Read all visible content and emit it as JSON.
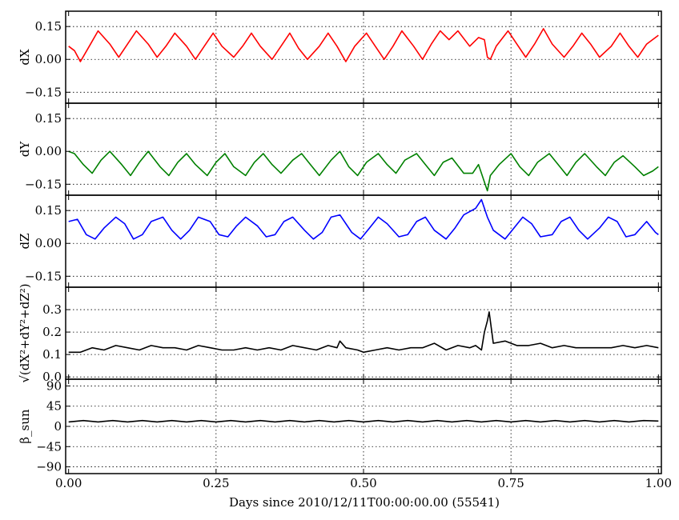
{
  "chart_data": {
    "type": "line",
    "xlabel": "Days since 2010/12/11T00:00:00.00 (55541)",
    "xlim": [
      -0.005,
      1.005
    ],
    "xticks": [
      0.0,
      0.25,
      0.5,
      0.75,
      1.0
    ],
    "xtick_labels": [
      "0.00",
      "0.25",
      "0.50",
      "0.75",
      "1.00"
    ],
    "grid": true,
    "panels": [
      {
        "ylabel": "dX",
        "ylim": [
          -0.2,
          0.22
        ],
        "yticks": [
          -0.15,
          0.0,
          0.15
        ],
        "ytick_labels": [
          "−0.15",
          "0.00",
          "0.15"
        ],
        "color": "#ff0000",
        "series": {
          "x": [
            0.0,
            0.01,
            0.02,
            0.035,
            0.05,
            0.07,
            0.085,
            0.1,
            0.115,
            0.135,
            0.15,
            0.165,
            0.18,
            0.2,
            0.215,
            0.23,
            0.245,
            0.26,
            0.28,
            0.295,
            0.31,
            0.325,
            0.345,
            0.36,
            0.375,
            0.39,
            0.405,
            0.425,
            0.44,
            0.455,
            0.47,
            0.485,
            0.505,
            0.52,
            0.535,
            0.55,
            0.565,
            0.585,
            0.6,
            0.615,
            0.63,
            0.645,
            0.66,
            0.68,
            0.695,
            0.705,
            0.71,
            0.715,
            0.725,
            0.745,
            0.76,
            0.775,
            0.79,
            0.805,
            0.82,
            0.84,
            0.855,
            0.87,
            0.885,
            0.9,
            0.92,
            0.935,
            0.95,
            0.965,
            0.98,
            1.0
          ],
          "y": [
            0.06,
            0.04,
            -0.01,
            0.06,
            0.13,
            0.07,
            0.01,
            0.07,
            0.13,
            0.07,
            0.01,
            0.06,
            0.12,
            0.06,
            0.0,
            0.06,
            0.12,
            0.06,
            0.01,
            0.06,
            0.12,
            0.06,
            0.0,
            0.06,
            0.12,
            0.05,
            0.0,
            0.06,
            0.12,
            0.06,
            -0.01,
            0.06,
            0.12,
            0.06,
            0.0,
            0.06,
            0.13,
            0.06,
            0.0,
            0.07,
            0.13,
            0.09,
            0.13,
            0.06,
            0.1,
            0.09,
            0.01,
            0.0,
            0.06,
            0.13,
            0.07,
            0.01,
            0.07,
            0.14,
            0.07,
            0.01,
            0.06,
            0.12,
            0.07,
            0.01,
            0.06,
            0.12,
            0.06,
            0.01,
            0.07,
            0.11
          ]
        }
      },
      {
        "ylabel": "dY",
        "ylim": [
          -0.2,
          0.22
        ],
        "yticks": [
          -0.15,
          0.0,
          0.15
        ],
        "ytick_labels": [
          "−0.15",
          "0.00",
          "0.15"
        ],
        "color": "#008000",
        "series": {
          "x": [
            0.0,
            0.01,
            0.025,
            0.04,
            0.055,
            0.07,
            0.09,
            0.105,
            0.12,
            0.135,
            0.155,
            0.17,
            0.185,
            0.2,
            0.215,
            0.235,
            0.25,
            0.265,
            0.28,
            0.3,
            0.315,
            0.33,
            0.345,
            0.36,
            0.38,
            0.395,
            0.41,
            0.425,
            0.445,
            0.46,
            0.475,
            0.49,
            0.505,
            0.525,
            0.54,
            0.555,
            0.57,
            0.59,
            0.605,
            0.62,
            0.635,
            0.65,
            0.67,
            0.685,
            0.695,
            0.7,
            0.705,
            0.71,
            0.715,
            0.73,
            0.75,
            0.765,
            0.78,
            0.795,
            0.815,
            0.83,
            0.845,
            0.86,
            0.875,
            0.895,
            0.91,
            0.925,
            0.94,
            0.96,
            0.975,
            0.99,
            1.0
          ],
          "y": [
            0.0,
            -0.01,
            -0.06,
            -0.1,
            -0.04,
            0.0,
            -0.06,
            -0.11,
            -0.05,
            0.0,
            -0.07,
            -0.11,
            -0.05,
            -0.01,
            -0.06,
            -0.11,
            -0.05,
            -0.01,
            -0.07,
            -0.11,
            -0.05,
            -0.01,
            -0.06,
            -0.1,
            -0.04,
            -0.01,
            -0.06,
            -0.11,
            -0.04,
            0.0,
            -0.07,
            -0.11,
            -0.05,
            -0.01,
            -0.06,
            -0.1,
            -0.04,
            -0.01,
            -0.06,
            -0.11,
            -0.05,
            -0.03,
            -0.1,
            -0.1,
            -0.06,
            -0.1,
            -0.14,
            -0.18,
            -0.11,
            -0.06,
            -0.01,
            -0.07,
            -0.11,
            -0.05,
            -0.01,
            -0.06,
            -0.11,
            -0.05,
            -0.01,
            -0.07,
            -0.11,
            -0.05,
            -0.02,
            -0.07,
            -0.11,
            -0.09,
            -0.07
          ]
        }
      },
      {
        "ylabel": "dZ",
        "ylim": [
          -0.2,
          0.22
        ],
        "yticks": [
          -0.15,
          0.0,
          0.15
        ],
        "ytick_labels": [
          "−0.15",
          "0.00",
          "0.15"
        ],
        "color": "#0000ff",
        "series": {
          "x": [
            0.0,
            0.015,
            0.03,
            0.045,
            0.06,
            0.08,
            0.095,
            0.11,
            0.125,
            0.14,
            0.16,
            0.175,
            0.19,
            0.205,
            0.22,
            0.24,
            0.255,
            0.27,
            0.285,
            0.3,
            0.32,
            0.335,
            0.35,
            0.365,
            0.38,
            0.4,
            0.415,
            0.43,
            0.445,
            0.46,
            0.48,
            0.495,
            0.51,
            0.525,
            0.54,
            0.56,
            0.575,
            0.59,
            0.605,
            0.62,
            0.64,
            0.655,
            0.67,
            0.69,
            0.7,
            0.71,
            0.72,
            0.74,
            0.755,
            0.77,
            0.785,
            0.8,
            0.82,
            0.835,
            0.85,
            0.865,
            0.88,
            0.9,
            0.915,
            0.93,
            0.945,
            0.96,
            0.98,
            0.995,
            1.0
          ],
          "y": [
            0.1,
            0.11,
            0.04,
            0.02,
            0.07,
            0.12,
            0.09,
            0.02,
            0.04,
            0.1,
            0.12,
            0.06,
            0.02,
            0.06,
            0.12,
            0.1,
            0.04,
            0.03,
            0.08,
            0.12,
            0.08,
            0.03,
            0.04,
            0.1,
            0.12,
            0.06,
            0.02,
            0.05,
            0.12,
            0.13,
            0.05,
            0.02,
            0.07,
            0.12,
            0.09,
            0.03,
            0.04,
            0.1,
            0.12,
            0.06,
            0.02,
            0.07,
            0.13,
            0.16,
            0.2,
            0.12,
            0.06,
            0.02,
            0.07,
            0.12,
            0.09,
            0.03,
            0.04,
            0.1,
            0.12,
            0.06,
            0.02,
            0.07,
            0.12,
            0.1,
            0.03,
            0.04,
            0.1,
            0.05,
            0.04
          ]
        }
      },
      {
        "ylabel": "√(dX²+dY²+dZ²)",
        "ylim": [
          -0.01,
          0.4
        ],
        "yticks": [
          0.0,
          0.1,
          0.2,
          0.3
        ],
        "ytick_labels": [
          "0.0",
          "0.1",
          "0.2",
          "0.3"
        ],
        "color": "#000000",
        "series": {
          "x": [
            0.0,
            0.02,
            0.04,
            0.06,
            0.08,
            0.1,
            0.12,
            0.14,
            0.16,
            0.18,
            0.2,
            0.22,
            0.24,
            0.26,
            0.28,
            0.3,
            0.32,
            0.34,
            0.36,
            0.38,
            0.4,
            0.42,
            0.44,
            0.455,
            0.46,
            0.47,
            0.49,
            0.5,
            0.52,
            0.54,
            0.56,
            0.58,
            0.6,
            0.62,
            0.64,
            0.66,
            0.68,
            0.69,
            0.7,
            0.705,
            0.71,
            0.713,
            0.72,
            0.74,
            0.76,
            0.78,
            0.8,
            0.82,
            0.84,
            0.86,
            0.88,
            0.9,
            0.92,
            0.94,
            0.96,
            0.98,
            1.0
          ],
          "y": [
            0.11,
            0.11,
            0.13,
            0.12,
            0.14,
            0.13,
            0.12,
            0.14,
            0.13,
            0.13,
            0.12,
            0.14,
            0.13,
            0.12,
            0.12,
            0.13,
            0.12,
            0.13,
            0.12,
            0.14,
            0.13,
            0.12,
            0.14,
            0.13,
            0.16,
            0.13,
            0.12,
            0.11,
            0.12,
            0.13,
            0.12,
            0.13,
            0.13,
            0.15,
            0.12,
            0.14,
            0.13,
            0.14,
            0.12,
            0.2,
            0.25,
            0.29,
            0.15,
            0.16,
            0.14,
            0.14,
            0.15,
            0.13,
            0.14,
            0.13,
            0.13,
            0.13,
            0.13,
            0.14,
            0.13,
            0.14,
            0.13
          ]
        }
      },
      {
        "ylabel": "β_sun",
        "ylim": [
          -105,
          105
        ],
        "yticks": [
          -90,
          -45,
          0,
          45,
          90
        ],
        "ytick_labels": [
          "−90",
          "−45",
          "0",
          "45",
          "90"
        ],
        "color": "#000000",
        "series": {
          "x": [
            0.0,
            0.025,
            0.05,
            0.075,
            0.1,
            0.125,
            0.15,
            0.175,
            0.2,
            0.225,
            0.25,
            0.275,
            0.3,
            0.325,
            0.35,
            0.375,
            0.4,
            0.425,
            0.45,
            0.475,
            0.5,
            0.525,
            0.55,
            0.575,
            0.6,
            0.625,
            0.65,
            0.675,
            0.7,
            0.725,
            0.75,
            0.775,
            0.8,
            0.825,
            0.85,
            0.875,
            0.9,
            0.925,
            0.95,
            0.975,
            1.0
          ],
          "y": [
            10,
            13,
            10,
            13,
            10,
            13,
            10,
            13,
            10,
            13,
            10,
            13,
            10,
            13,
            10,
            13,
            10,
            13,
            10,
            13,
            10,
            13,
            10,
            13,
            10,
            13,
            10,
            13,
            10,
            13,
            10,
            13,
            10,
            13,
            10,
            13,
            10,
            13,
            10,
            13,
            12
          ]
        }
      }
    ]
  }
}
